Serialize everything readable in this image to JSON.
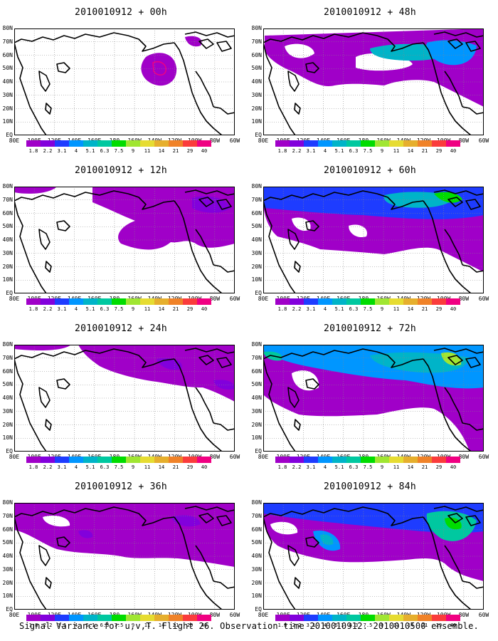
{
  "panels": [
    {
      "title": "2010010912 + 00h"
    },
    {
      "title": "2010010912 + 48h"
    },
    {
      "title": "2010010912 + 12h"
    },
    {
      "title": "2010010912 + 60h"
    },
    {
      "title": "2010010912 + 24h"
    },
    {
      "title": "2010010912 + 72h"
    },
    {
      "title": "2010010912 + 36h"
    },
    {
      "title": "2010010912 + 84h"
    }
  ],
  "lat_labels": [
    "80N",
    "70N",
    "60N",
    "50N",
    "40N",
    "30N",
    "20N",
    "10N",
    "EQ"
  ],
  "lon_labels": [
    "80E",
    "100E",
    "120E",
    "140E",
    "160E",
    "180",
    "160W",
    "140W",
    "120W",
    "100W",
    "80W",
    "60W"
  ],
  "colorbar": {
    "ticks": [
      "1.8",
      "2.2",
      "3.1",
      "4",
      "5.1",
      "6.3",
      "7.5",
      "9",
      "11",
      "14",
      "21",
      "29",
      "40"
    ],
    "colors": [
      "#a000c8",
      "#8200dc",
      "#1e3cff",
      "#0096ff",
      "#00b4c8",
      "#00c8a0",
      "#00dc00",
      "#a0e632",
      "#e6dc32",
      "#e6af2d",
      "#f08228",
      "#fa3c3c",
      "#f00082"
    ]
  },
  "caption": "Signal Variance for u,v,T. Flight 26. Observation time 2010010912. 2010010500 ensemble."
}
